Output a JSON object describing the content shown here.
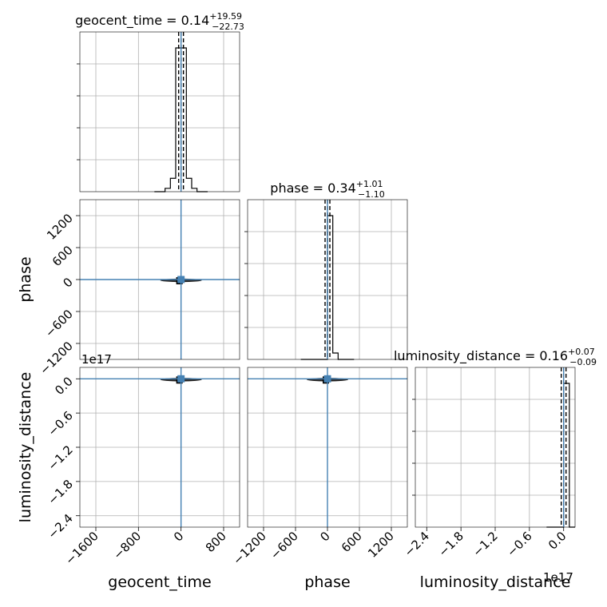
{
  "chart_data": {
    "type": "corner",
    "parameters": [
      {
        "key": "geocent_time",
        "label": "geocent_time",
        "median": "0.14",
        "plus": "+19.59",
        "minus": "−22.73",
        "range": [
          -1900,
          1100
        ],
        "ticks": [
          -1600,
          -800,
          0,
          800
        ],
        "tick_labels": [
          "−1600",
          "−800",
          "0",
          "800"
        ],
        "truth": 0
      },
      {
        "key": "phase",
        "label": "phase",
        "median": "0.34",
        "plus": "+1.01",
        "minus": "−1.10",
        "range": [
          -1500,
          1500
        ],
        "ticks": [
          -1200,
          -600,
          0,
          600,
          1200
        ],
        "tick_labels": [
          "−1200",
          "−600",
          "0",
          "600",
          "1200"
        ],
        "truth": 0
      },
      {
        "key": "luminosity_distance",
        "label": "luminosity_distance",
        "median": "0.16",
        "plus": "+0.07",
        "minus": "−0.09",
        "range": [
          -2.6,
          0.2
        ],
        "ticks": [
          -2.4,
          -1.8,
          -1.2,
          -0.6,
          0.0
        ],
        "tick_labels": [
          "−2.4",
          "−1.8",
          "−1.2",
          "−0.6",
          "0.0"
        ],
        "offset": "1e17",
        "truth": 0
      }
    ],
    "histograms": {
      "geocent_time": {
        "edges": [
          -500,
          -400,
          -300,
          -200,
          -100,
          0,
          100,
          200,
          300,
          400,
          500
        ],
        "counts": [
          0,
          0,
          1,
          4,
          43,
          43,
          4,
          1,
          0,
          0
        ]
      },
      "phase": {
        "edges": [
          -500,
          -400,
          -300,
          -200,
          -100,
          0,
          100,
          200,
          300,
          400,
          500
        ],
        "counts": [
          0,
          0,
          0,
          0,
          0,
          45,
          2,
          0,
          0,
          0
        ]
      },
      "luminosity_distance": {
        "edges": [
          -0.3,
          -0.2,
          -0.1,
          0.0,
          0.1,
          0.2
        ],
        "counts": [
          0,
          0,
          0,
          45,
          0
        ]
      }
    },
    "grid": true,
    "truth_color": "#4682b4"
  }
}
